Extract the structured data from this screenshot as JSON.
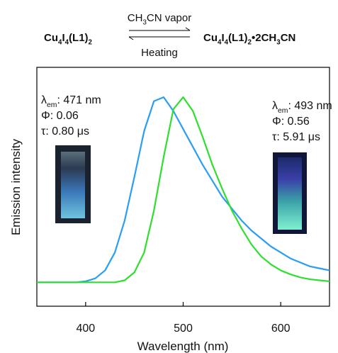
{
  "chart_data": {
    "type": "line",
    "reaction": {
      "reactant": [
        "Cu",
        "4",
        "I",
        "4",
        "(L1)",
        "2"
      ],
      "forward_condition": [
        "CH",
        "3",
        "CN vapor"
      ],
      "reverse_condition": "Heating",
      "product": [
        "Cu",
        "4",
        "I",
        "4",
        "(L1)",
        "2",
        "•2CH",
        "3",
        "CN"
      ]
    },
    "annotations": [
      [
        [
          "λ",
          "em",
          ": 471 nm"
        ],
        [
          "Φ: 0.06"
        ],
        [
          "τ: 0.80 μs"
        ]
      ],
      [
        [
          "λ",
          "em",
          ": 493 nm"
        ],
        [
          "Φ: 0.56"
        ],
        [
          "τ: 5.91 μs"
        ]
      ]
    ],
    "x_label": "Wavelength (nm)",
    "y_label": "Emission intensity",
    "x": [
      350,
      360,
      370,
      380,
      390,
      400,
      410,
      420,
      430,
      440,
      450,
      460,
      470,
      480,
      490,
      500,
      510,
      520,
      530,
      540,
      550,
      560,
      570,
      580,
      590,
      600,
      610,
      620,
      630,
      640,
      650
    ],
    "series": [
      {
        "color": "#2a9df4",
        "values": [
          0.02,
          0.02,
          0.02,
          0.02,
          0.02,
          0.025,
          0.04,
          0.08,
          0.17,
          0.33,
          0.55,
          0.78,
          0.93,
          0.95,
          0.88,
          0.79,
          0.7,
          0.61,
          0.53,
          0.45,
          0.39,
          0.33,
          0.28,
          0.24,
          0.2,
          0.17,
          0.14,
          0.12,
          0.1,
          0.09,
          0.08
        ]
      },
      {
        "color": "#2ee02e",
        "values": [
          0.02,
          0.02,
          0.02,
          0.02,
          0.02,
          0.02,
          0.02,
          0.02,
          0.02,
          0.03,
          0.07,
          0.17,
          0.38,
          0.65,
          0.89,
          0.95,
          0.88,
          0.75,
          0.61,
          0.49,
          0.38,
          0.29,
          0.21,
          0.15,
          0.11,
          0.08,
          0.06,
          0.045,
          0.035,
          0.03,
          0.025
        ]
      }
    ],
    "xlim": [
      350,
      650
    ],
    "ylim": [
      -0.1,
      1.1
    ],
    "xticks": [
      400,
      500,
      600
    ]
  }
}
